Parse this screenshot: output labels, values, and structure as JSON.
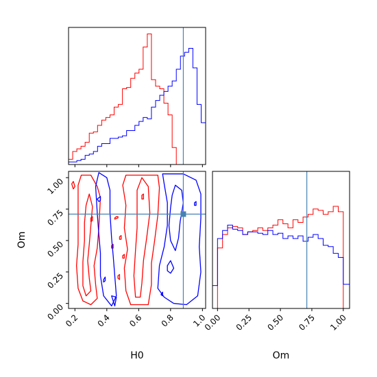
{
  "chart_data": {
    "type": "corner",
    "colors": {
      "red": "#ff0000",
      "blue": "#0000ff",
      "truth": "#4682b4"
    },
    "truth": {
      "H0": 0.88,
      "Om": 0.71
    },
    "params": [
      {
        "name": "H0",
        "range": [
          0.16,
          1.02
        ],
        "ticks": [
          "0.2",
          "0.4",
          "0.6",
          "0.8",
          "1.0"
        ]
      },
      {
        "name": "Om",
        "range": [
          -0.04,
          1.05
        ],
        "ticks": [
          "0.00",
          "0.25",
          "0.50",
          "0.75",
          "1.00"
        ]
      }
    ],
    "hist_H0": {
      "bins": [
        0.16,
        0.186,
        0.212,
        0.238,
        0.264,
        0.29,
        0.316,
        0.342,
        0.368,
        0.394,
        0.42,
        0.446,
        0.472,
        0.498,
        0.524,
        0.55,
        0.576,
        0.602,
        0.628,
        0.654,
        0.68,
        0.706,
        0.732,
        0.758,
        0.784,
        0.81,
        0.836,
        0.862,
        0.888,
        0.914,
        0.94,
        0.966,
        0.992,
        1.02
      ],
      "series": [
        {
          "name": "red",
          "values": [
            0.04,
            0.1,
            0.12,
            0.14,
            0.17,
            0.24,
            0.25,
            0.3,
            0.34,
            0.36,
            0.38,
            0.44,
            0.46,
            0.58,
            0.59,
            0.66,
            0.7,
            0.73,
            0.9,
            1.0,
            0.65,
            0.6,
            0.58,
            0.47,
            0.38,
            0.13,
            0.0,
            0.0,
            0.0,
            0.0,
            0.0,
            0.0,
            0.0
          ]
        },
        {
          "name": "blue",
          "values": [
            0.02,
            0.02,
            0.03,
            0.04,
            0.07,
            0.08,
            0.1,
            0.14,
            0.16,
            0.16,
            0.2,
            0.2,
            0.21,
            0.22,
            0.26,
            0.26,
            0.3,
            0.33,
            0.36,
            0.35,
            0.44,
            0.49,
            0.53,
            0.56,
            0.6,
            0.64,
            0.73,
            0.83,
            0.86,
            0.89,
            0.74,
            0.46,
            0.32
          ]
        }
      ]
    },
    "hist_Om": {
      "bins": [
        -0.04,
        -0.0,
        0.04,
        0.08,
        0.12,
        0.16,
        0.2,
        0.24,
        0.28,
        0.32,
        0.36,
        0.4,
        0.44,
        0.48,
        0.52,
        0.56,
        0.6,
        0.64,
        0.68,
        0.72,
        0.76,
        0.8,
        0.84,
        0.88,
        0.92,
        0.96,
        1.0,
        1.05
      ],
      "series": [
        {
          "name": "red",
          "values": [
            0.0,
            0.45,
            0.55,
            0.6,
            0.61,
            0.6,
            0.55,
            0.57,
            0.58,
            0.6,
            0.58,
            0.6,
            0.62,
            0.66,
            0.63,
            0.6,
            0.66,
            0.64,
            0.68,
            0.7,
            0.74,
            0.73,
            0.7,
            0.72,
            0.76,
            0.72,
            0.0
          ]
        },
        {
          "name": "blue",
          "values": [
            0.17,
            0.52,
            0.58,
            0.62,
            0.59,
            0.58,
            0.55,
            0.57,
            0.57,
            0.56,
            0.55,
            0.58,
            0.55,
            0.56,
            0.52,
            0.54,
            0.52,
            0.54,
            0.5,
            0.53,
            0.55,
            0.52,
            0.47,
            0.46,
            0.41,
            0.38,
            0.18
          ]
        }
      ]
    },
    "contours": {
      "red": [
        [
          [
            0.22,
            0.94
          ],
          [
            0.24,
            1.02
          ],
          [
            0.3,
            1.02
          ],
          [
            0.34,
            0.93
          ],
          [
            0.36,
            0.84
          ],
          [
            0.35,
            0.6
          ],
          [
            0.34,
            0.44
          ],
          [
            0.32,
            0.3
          ],
          [
            0.33,
            0.15
          ],
          [
            0.34,
            0.04
          ],
          [
            0.3,
            -0.01
          ],
          [
            0.25,
            0.02
          ],
          [
            0.22,
            0.12
          ],
          [
            0.21,
            0.3
          ],
          [
            0.22,
            0.47
          ],
          [
            0.22,
            0.68
          ]
        ],
        [
          [
            0.27,
            0.78
          ],
          [
            0.29,
            0.87
          ],
          [
            0.31,
            0.77
          ],
          [
            0.3,
            0.62
          ],
          [
            0.29,
            0.47
          ],
          [
            0.28,
            0.34
          ],
          [
            0.29,
            0.2
          ],
          [
            0.3,
            0.1
          ],
          [
            0.27,
            0.06
          ],
          [
            0.25,
            0.14
          ],
          [
            0.25,
            0.33
          ],
          [
            0.26,
            0.5
          ],
          [
            0.26,
            0.64
          ]
        ],
        [
          [
            0.5,
            0.94
          ],
          [
            0.52,
            1.02
          ],
          [
            0.72,
            1.02
          ],
          [
            0.73,
            0.92
          ],
          [
            0.72,
            0.7
          ],
          [
            0.7,
            0.5
          ],
          [
            0.68,
            0.32
          ],
          [
            0.68,
            0.15
          ],
          [
            0.66,
            -0.01
          ],
          [
            0.55,
            -0.01
          ],
          [
            0.52,
            0.1
          ],
          [
            0.51,
            0.28
          ],
          [
            0.53,
            0.43
          ],
          [
            0.51,
            0.6
          ],
          [
            0.52,
            0.78
          ]
        ],
        [
          [
            0.59,
            0.9
          ],
          [
            0.62,
            1.0
          ],
          [
            0.66,
            0.93
          ],
          [
            0.67,
            0.72
          ],
          [
            0.65,
            0.52
          ],
          [
            0.63,
            0.34
          ],
          [
            0.62,
            0.16
          ],
          [
            0.61,
            0.05
          ],
          [
            0.58,
            0.05
          ],
          [
            0.57,
            0.22
          ],
          [
            0.58,
            0.42
          ],
          [
            0.59,
            0.6
          ],
          [
            0.59,
            0.76
          ]
        ],
        [
          [
            0.45,
            0.68
          ],
          [
            0.46,
            0.69
          ],
          [
            0.47,
            0.69
          ],
          [
            0.47,
            0.68
          ],
          [
            0.45,
            0.67
          ]
        ],
        [
          [
            0.3,
            0.68
          ],
          [
            0.31,
            0.69
          ],
          [
            0.31,
            0.66
          ],
          [
            0.3,
            0.65
          ]
        ],
        [
          [
            0.47,
            0.22
          ],
          [
            0.48,
            0.23
          ],
          [
            0.48,
            0.19
          ],
          [
            0.47,
            0.2
          ]
        ],
        [
          [
            0.5,
            0.38
          ],
          [
            0.51,
            0.39
          ],
          [
            0.51,
            0.36
          ],
          [
            0.5,
            0.36
          ]
        ],
        [
          [
            0.62,
            0.86
          ],
          [
            0.63,
            0.87
          ],
          [
            0.63,
            0.83
          ],
          [
            0.62,
            0.83
          ]
        ],
        [
          [
            0.18,
            0.95
          ],
          [
            0.19,
            0.97
          ],
          [
            0.2,
            0.93
          ],
          [
            0.19,
            0.91
          ]
        ],
        [
          [
            0.43,
            0.46
          ],
          [
            0.44,
            0.47
          ],
          [
            0.44,
            0.44
          ],
          [
            0.43,
            0.44
          ]
        ],
        [
          [
            0.48,
            0.53
          ],
          [
            0.49,
            0.54
          ],
          [
            0.49,
            0.51
          ],
          [
            0.48,
            0.51
          ]
        ]
      ],
      "blue": [
        [
          [
            0.33,
            0.93
          ],
          [
            0.35,
            1.04
          ],
          [
            0.4,
            1.0
          ],
          [
            0.42,
            0.9
          ],
          [
            0.42,
            0.72
          ],
          [
            0.43,
            0.52
          ],
          [
            0.44,
            0.38
          ],
          [
            0.45,
            0.22
          ],
          [
            0.46,
            0.06
          ],
          [
            0.43,
            -0.02
          ],
          [
            0.38,
            0.06
          ],
          [
            0.36,
            0.22
          ],
          [
            0.36,
            0.4
          ],
          [
            0.35,
            0.55
          ],
          [
            0.34,
            0.72
          ]
        ],
        [
          [
            0.43,
            0.06
          ],
          [
            0.46,
            0.05
          ],
          [
            0.45,
            -0.02
          ]
        ],
        [
          [
            0.76,
            0.95
          ],
          [
            0.75,
            1.03
          ],
          [
            0.88,
            1.03
          ],
          [
            0.96,
            0.98
          ],
          [
            0.99,
            0.87
          ],
          [
            0.99,
            0.68
          ],
          [
            0.98,
            0.45
          ],
          [
            0.99,
            0.25
          ],
          [
            0.97,
            0.06
          ],
          [
            0.9,
            -0.01
          ],
          [
            0.82,
            0.0
          ],
          [
            0.76,
            0.05
          ],
          [
            0.72,
            0.12
          ],
          [
            0.73,
            0.3
          ],
          [
            0.76,
            0.45
          ],
          [
            0.78,
            0.62
          ],
          [
            0.78,
            0.8
          ]
        ],
        [
          [
            0.81,
            0.86
          ],
          [
            0.83,
            0.94
          ],
          [
            0.87,
            0.9
          ],
          [
            0.88,
            0.8
          ],
          [
            0.86,
            0.65
          ],
          [
            0.85,
            0.52
          ],
          [
            0.83,
            0.42
          ],
          [
            0.8,
            0.5
          ],
          [
            0.79,
            0.62
          ],
          [
            0.8,
            0.76
          ]
        ],
        [
          [
            0.78,
            0.3
          ],
          [
            0.8,
            0.34
          ],
          [
            0.82,
            0.28
          ],
          [
            0.8,
            0.24
          ],
          [
            0.78,
            0.26
          ]
        ],
        [
          [
            0.34,
            0.83
          ],
          [
            0.36,
            0.85
          ],
          [
            0.36,
            0.82
          ],
          [
            0.35,
            0.81
          ]
        ],
        [
          [
            0.38,
            0.19
          ],
          [
            0.39,
            0.21
          ],
          [
            0.39,
            0.18
          ],
          [
            0.38,
            0.17
          ]
        ],
        [
          [
            0.95,
            0.8
          ],
          [
            0.96,
            0.81
          ],
          [
            0.96,
            0.78
          ],
          [
            0.95,
            0.78
          ]
        ],
        [
          [
            0.74,
            0.07
          ],
          [
            0.75,
            0.09
          ],
          [
            0.75,
            0.06
          ]
        ]
      ]
    }
  }
}
